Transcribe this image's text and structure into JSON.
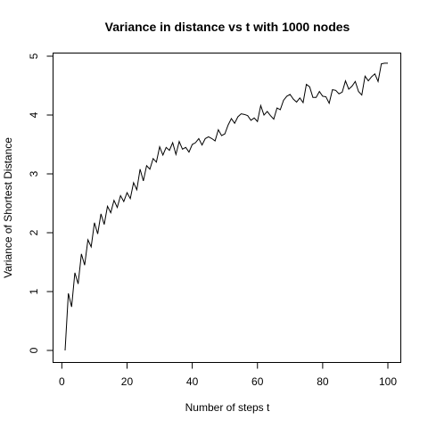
{
  "chart_data": {
    "type": "line",
    "title": "Variance in distance vs t with 1000 nodes",
    "xlabel": "Number of steps t",
    "ylabel": "Variance of Shortest Distance",
    "xlim": [
      1,
      100
    ],
    "ylim": [
      0,
      5
    ],
    "grid": false,
    "legend": "none",
    "line_color": "#000000",
    "x_ticks": [
      0,
      20,
      40,
      60,
      80,
      100
    ],
    "x_tick_labels": [
      "0",
      "20",
      "40",
      "60",
      "80",
      "100"
    ],
    "y_ticks": [
      0,
      1,
      2,
      3,
      4,
      5
    ],
    "y_tick_labels": [
      "0",
      "1",
      "2",
      "3",
      "4",
      "5"
    ],
    "series": [
      {
        "x": [
          1,
          2,
          3,
          4,
          5,
          6,
          7,
          8,
          9,
          10,
          11,
          12,
          13,
          14,
          15,
          16,
          17,
          18,
          19,
          20,
          21,
          22,
          23,
          24,
          25,
          26,
          27,
          28,
          29,
          30,
          31,
          32,
          33,
          34,
          35,
          36,
          37,
          38,
          39,
          40,
          41,
          42,
          43,
          44,
          45,
          46,
          47,
          48,
          49,
          50,
          51,
          52,
          53,
          54,
          55,
          56,
          57,
          58,
          59,
          60,
          61,
          62,
          63,
          64,
          65,
          66,
          67,
          68,
          69,
          70,
          71,
          72,
          73,
          74,
          75,
          76,
          77,
          78,
          79,
          80,
          81,
          82,
          83,
          84,
          85,
          86,
          87,
          88,
          89,
          90,
          91,
          92,
          93,
          94,
          95,
          96,
          97,
          98,
          99,
          100
        ],
        "y": [
          0.0,
          0.97,
          0.74,
          1.32,
          1.13,
          1.64,
          1.45,
          1.88,
          1.76,
          2.17,
          1.98,
          2.32,
          2.14,
          2.45,
          2.34,
          2.55,
          2.43,
          2.63,
          2.53,
          2.68,
          2.58,
          2.85,
          2.73,
          3.08,
          2.88,
          3.14,
          3.08,
          3.26,
          3.2,
          3.46,
          3.32,
          3.45,
          3.4,
          3.53,
          3.33,
          3.55,
          3.42,
          3.45,
          3.37,
          3.5,
          3.53,
          3.6,
          3.49,
          3.6,
          3.63,
          3.6,
          3.56,
          3.75,
          3.65,
          3.68,
          3.83,
          3.94,
          3.86,
          3.97,
          4.02,
          4.01,
          3.99,
          3.91,
          3.95,
          3.89,
          4.16,
          4.0,
          4.06,
          3.99,
          3.93,
          4.12,
          4.09,
          4.25,
          4.32,
          4.35,
          4.27,
          4.22,
          4.29,
          4.21,
          4.52,
          4.48,
          4.3,
          4.3,
          4.4,
          4.32,
          4.31,
          4.2,
          4.43,
          4.42,
          4.36,
          4.39,
          4.58,
          4.44,
          4.49,
          4.57,
          4.4,
          4.34,
          4.66,
          4.58,
          4.65,
          4.7,
          4.57,
          4.87,
          4.88,
          4.88
        ]
      }
    ]
  }
}
